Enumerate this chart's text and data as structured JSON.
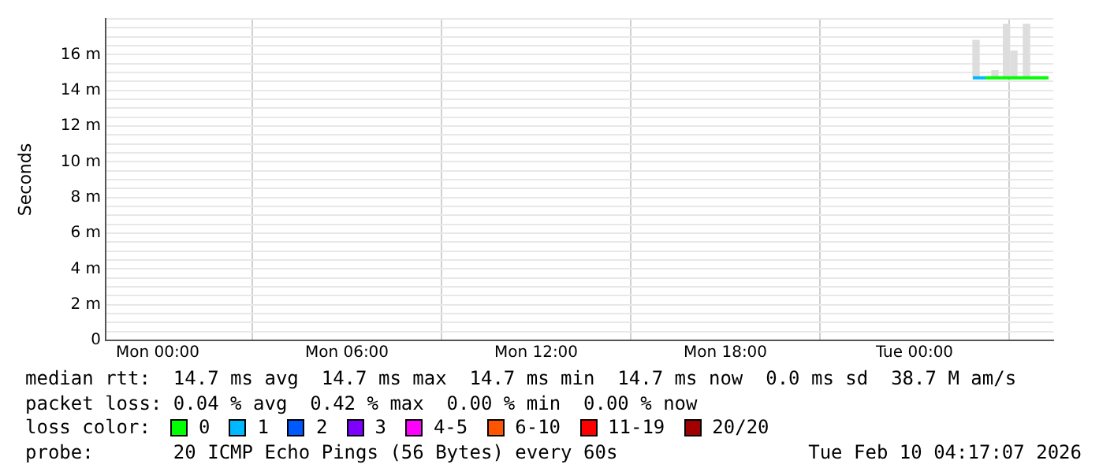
{
  "chart_data": {
    "type": "line",
    "ylabel": "Seconds",
    "legend_title": "loss color:",
    "legend": "bottom",
    "grid": true,
    "xlim": [
      "2026-02-08T22:21",
      "2026-02-10T04:24"
    ],
    "xticks": [
      {
        "value": "2026-02-09T00:00",
        "label": "Mon 00:00"
      },
      {
        "value": "2026-02-09T06:00",
        "label": "Mon 06:00"
      },
      {
        "value": "2026-02-09T12:00",
        "label": "Mon 12:00"
      },
      {
        "value": "2026-02-09T18:00",
        "label": "Mon 18:00"
      },
      {
        "value": "2026-02-10T00:00",
        "label": "Tue 00:00"
      }
    ],
    "ylim": [
      0,
      18
    ],
    "yticks": [
      {
        "value": 0,
        "label": "0"
      },
      {
        "value": 0.5,
        "label": null
      },
      {
        "value": 1,
        "label": null
      },
      {
        "value": 1.5,
        "label": null
      },
      {
        "value": 2,
        "label": "2 m"
      },
      {
        "value": 2.5,
        "label": null
      },
      {
        "value": 3,
        "label": null
      },
      {
        "value": 3.5,
        "label": null
      },
      {
        "value": 4,
        "label": "4 m"
      },
      {
        "value": 4.5,
        "label": null
      },
      {
        "value": 5,
        "label": null
      },
      {
        "value": 5.5,
        "label": null
      },
      {
        "value": 6,
        "label": "6 m"
      },
      {
        "value": 6.5,
        "label": null
      },
      {
        "value": 7,
        "label": null
      },
      {
        "value": 7.5,
        "label": null
      },
      {
        "value": 8,
        "label": "8 m"
      },
      {
        "value": 8.5,
        "label": null
      },
      {
        "value": 9,
        "label": null
      },
      {
        "value": 9.5,
        "label": null
      },
      {
        "value": 10,
        "label": "10 m"
      },
      {
        "value": 10.5,
        "label": null
      },
      {
        "value": 11,
        "label": null
      },
      {
        "value": 11.5,
        "label": null
      },
      {
        "value": 12,
        "label": "12 m"
      },
      {
        "value": 12.5,
        "label": null
      },
      {
        "value": 13,
        "label": null
      },
      {
        "value": 13.5,
        "label": null
      },
      {
        "value": 14,
        "label": "14 m"
      },
      {
        "value": 14.5,
        "label": null
      },
      {
        "value": 15,
        "label": null
      },
      {
        "value": 15.5,
        "label": null
      },
      {
        "value": 16,
        "label": "16 m"
      },
      {
        "value": 16.5,
        "label": null
      },
      {
        "value": 17,
        "label": null
      },
      {
        "value": 17.5,
        "label": null
      },
      {
        "value": 18,
        "label": null
      }
    ],
    "series": [
      {
        "type": "bar",
        "color": "#dddddd",
        "x": [
          "2026-02-10T01:57",
          "2026-02-10T02:33",
          "2026-02-10T02:55",
          "2026-02-10T03:09",
          "2026-02-10T03:33"
        ],
        "base": [
          14.7,
          14.7,
          14.7,
          14.7,
          14.7
        ],
        "values": [
          2.1,
          0.4,
          3.0,
          1.5,
          3.0
        ]
      },
      {
        "name": "0",
        "color": "#00ff00",
        "x": [
          "2026-02-10T02:15",
          "2026-02-10T04:15"
        ],
        "values": [
          14.7,
          14.7
        ]
      },
      {
        "name": "1",
        "color": "#00b8ff",
        "x": [
          "2026-02-10T01:51",
          "2026-02-10T02:15"
        ],
        "values": [
          14.7,
          14.7
        ]
      },
      {
        "name": "2",
        "color": "#0059ff"
      },
      {
        "name": "3",
        "color": "#7e00ff"
      },
      {
        "name": "4-5",
        "color": "#ff00ff"
      },
      {
        "name": "6-10",
        "color": "#ff5500"
      },
      {
        "name": "11-19",
        "color": "#ff0000"
      },
      {
        "name": "20/20",
        "color": "#a10000"
      }
    ],
    "annotations": [
      "median rtt:  14.7 ms avg  14.7 ms max  14.7 ms min  14.7 ms now  0.0 ms sd  38.7 M am/s",
      "packet loss: 0.04 % avg  0.42 % max  0.00 % min  0.00 % now",
      "probe:       20 ICMP Echo Pings (56 Bytes) every 60s",
      "Tue Feb 10 04:17:07 2026"
    ]
  }
}
